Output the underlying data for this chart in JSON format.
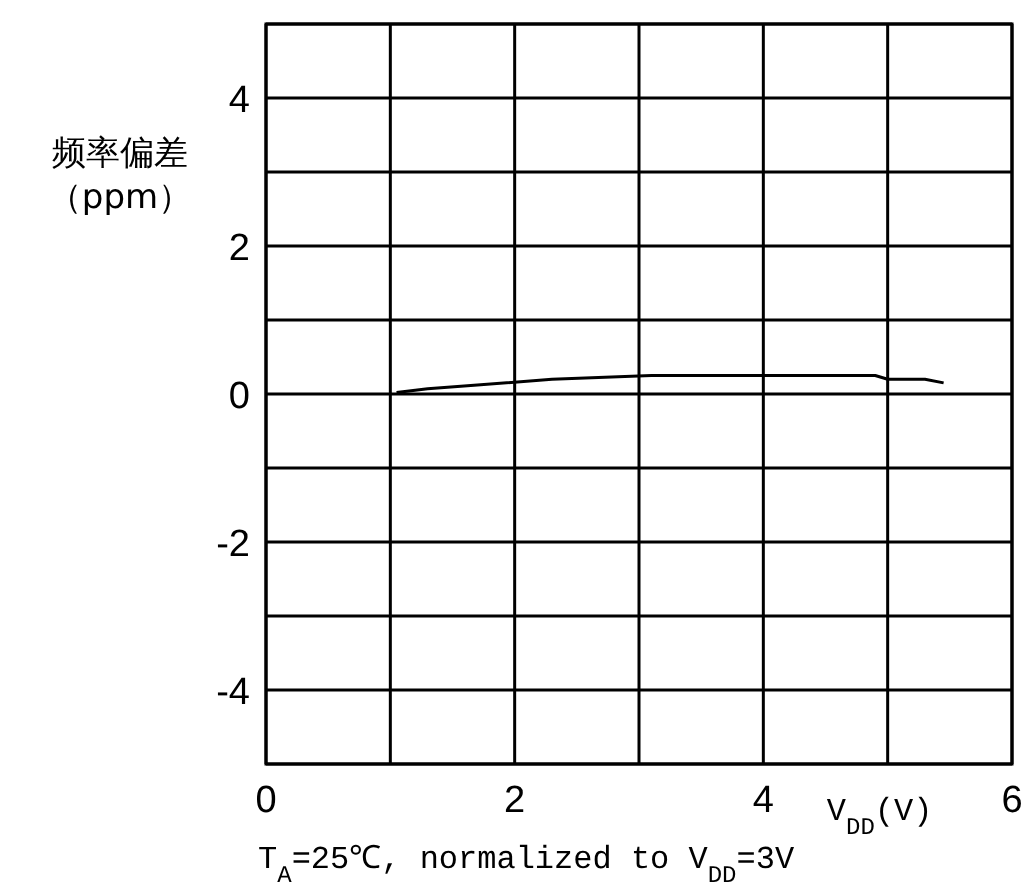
{
  "chart_data": {
    "type": "line",
    "xlabel": "V$_{DD}$(V)",
    "ylabel": "频率偏差（ppm）",
    "annotations": [
      "T$_{A}$=25℃, normalized to V$_{DD}$=3V"
    ],
    "x": [
      1.05,
      1.3,
      1.7,
      2.3,
      3.1,
      4.9,
      5.0,
      5.3,
      5.45
    ],
    "series": [
      {
        "color": "#000000",
        "values": [
          0.02,
          0.07,
          0.12,
          0.2,
          0.25,
          0.25,
          0.2,
          0.2,
          0.15
        ]
      }
    ],
    "xlim": [
      0,
      6
    ],
    "ylim": [
      -5,
      5
    ],
    "xticks": [
      0,
      {
        "value": 1,
        "label": null
      },
      2,
      {
        "value": 3,
        "label": null
      },
      4,
      {
        "value": 5,
        "label": null
      },
      6
    ],
    "yticks": [
      {
        "value": -5,
        "label": null
      },
      -4,
      {
        "value": -3,
        "label": null
      },
      -2,
      {
        "value": -1,
        "label": null
      },
      0,
      {
        "value": 1,
        "label": null
      },
      2,
      {
        "value": 3,
        "label": null
      },
      4,
      {
        "value": 5,
        "label": null
      }
    ],
    "grid": true,
    "marker": "none",
    "line_style": "solid"
  }
}
